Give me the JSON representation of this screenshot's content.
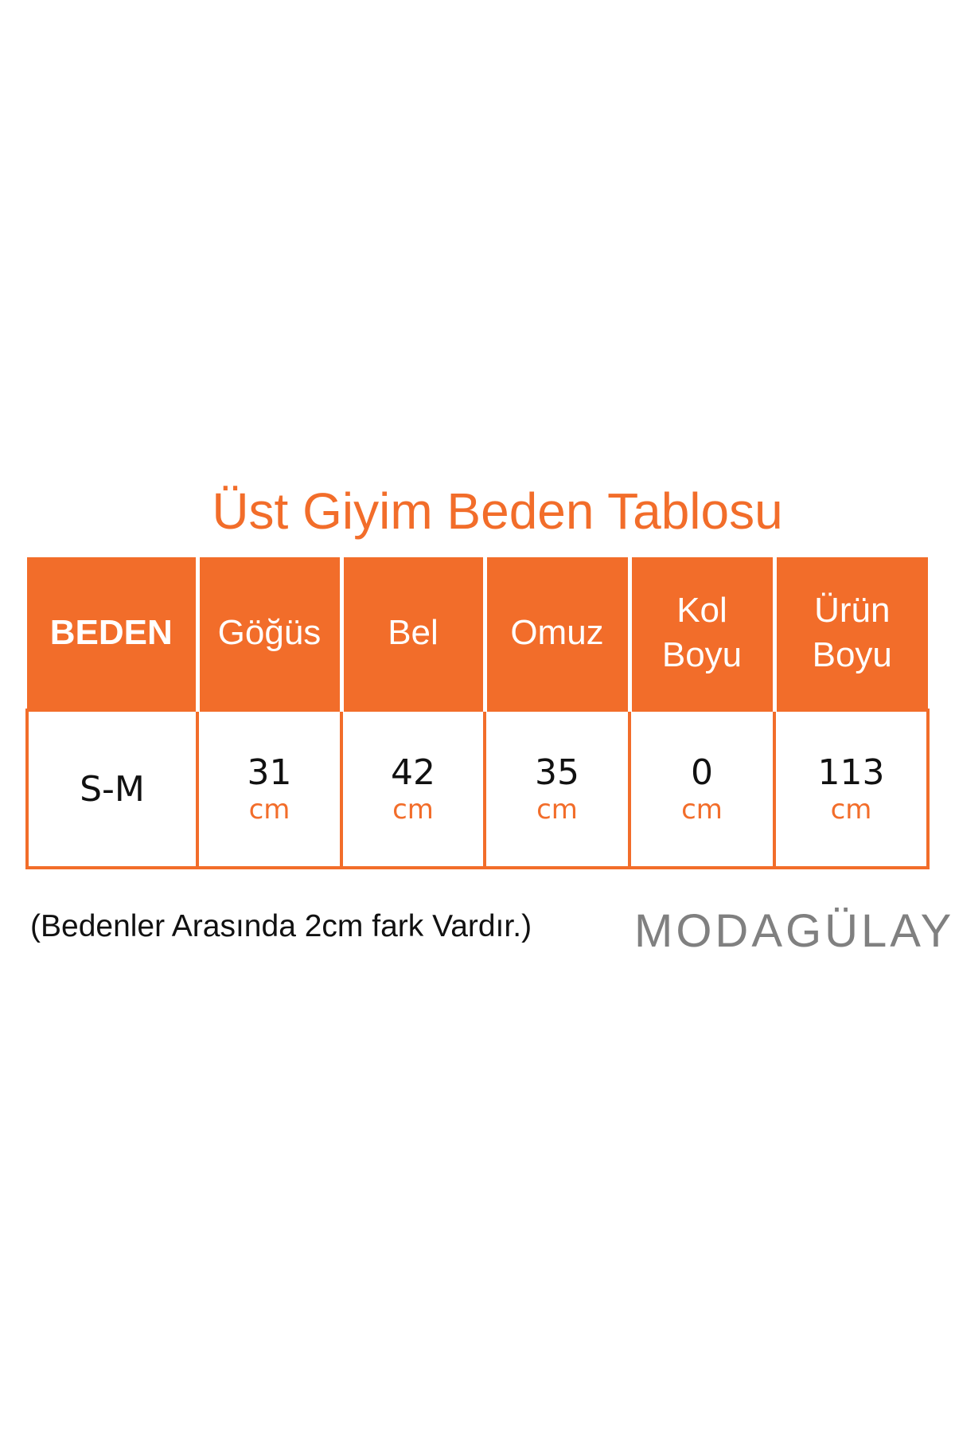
{
  "title": "Üst Giyim Beden Tablosu",
  "table": {
    "headers": [
      "BEDEN",
      "Göğüs",
      "Bel",
      "Omuz",
      "Kol Boyu",
      "Ürün Boyu"
    ],
    "rows": [
      {
        "size": "S-M",
        "values": [
          "31",
          "42",
          "35",
          "0",
          "113"
        ],
        "unit": "cm"
      }
    ]
  },
  "note": "(Bedenler Arasında 2cm fark Vardır.)",
  "logo": "MODAGÜLAY",
  "colors": {
    "accent": "#f26d2a",
    "logo": "#808080"
  }
}
